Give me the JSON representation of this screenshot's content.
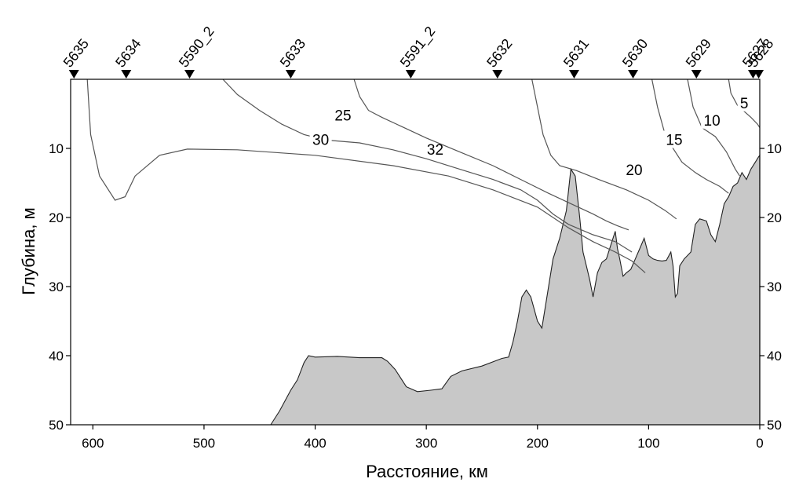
{
  "chart_data": {
    "type": "contour-section",
    "xlabel": "Расстояние, км",
    "ylabel": "Глубина, м",
    "xlim": [
      620,
      0
    ],
    "ylim": [
      0,
      50
    ],
    "x_ticks": [
      600,
      500,
      400,
      300,
      200,
      100,
      0
    ],
    "y_ticks": [
      10,
      20,
      30,
      40,
      50
    ],
    "stations": [
      {
        "name": "5635",
        "km": 617
      },
      {
        "name": "5634",
        "km": 570
      },
      {
        "name": "5590_2",
        "km": 513
      },
      {
        "name": "5633",
        "km": 422
      },
      {
        "name": "5591_2",
        "km": 314
      },
      {
        "name": "5632",
        "km": 236
      },
      {
        "name": "5631",
        "km": 167
      },
      {
        "name": "5630",
        "km": 114
      },
      {
        "name": "5629",
        "km": 57
      },
      {
        "name": "5627",
        "km": 6
      },
      {
        "name": "5628",
        "km": 1
      }
    ],
    "bottom_profile": [
      [
        455,
        50
      ],
      [
        440,
        50
      ],
      [
        432,
        48
      ],
      [
        422,
        45
      ],
      [
        416,
        43.5
      ],
      [
        410,
        41
      ],
      [
        406,
        40
      ],
      [
        400,
        40.2
      ],
      [
        380,
        40.1
      ],
      [
        360,
        40.3
      ],
      [
        340,
        40.3
      ],
      [
        335,
        40.8
      ],
      [
        328,
        42
      ],
      [
        318,
        44.5
      ],
      [
        308,
        45.2
      ],
      [
        296,
        45.0
      ],
      [
        286,
        44.8
      ],
      [
        278,
        43.0
      ],
      [
        268,
        42.2
      ],
      [
        250,
        41.5
      ],
      [
        232,
        40.4
      ],
      [
        226,
        40.2
      ],
      [
        222,
        38
      ],
      [
        218,
        35
      ],
      [
        214,
        31.5
      ],
      [
        210,
        30.5
      ],
      [
        206,
        31.5
      ],
      [
        200,
        35
      ],
      [
        196,
        36
      ],
      [
        192,
        32
      ],
      [
        186,
        26
      ],
      [
        180,
        23
      ],
      [
        174,
        19
      ],
      [
        170,
        13
      ],
      [
        166,
        14
      ],
      [
        162,
        20
      ],
      [
        159,
        25
      ],
      [
        156,
        27
      ],
      [
        153,
        29
      ],
      [
        150,
        31.5
      ],
      [
        146,
        28
      ],
      [
        142,
        26.5
      ],
      [
        138,
        26
      ],
      [
        134,
        24
      ],
      [
        130,
        22
      ],
      [
        128,
        24.5
      ],
      [
        126,
        26
      ],
      [
        123,
        28.5
      ],
      [
        120,
        28
      ],
      [
        116,
        27.5
      ],
      [
        112,
        26
      ],
      [
        108,
        24.5
      ],
      [
        104,
        23
      ],
      [
        100,
        25.5
      ],
      [
        96,
        26
      ],
      [
        92,
        26.2
      ],
      [
        88,
        26.3
      ],
      [
        84,
        26.2
      ],
      [
        80,
        25
      ],
      [
        78,
        27
      ],
      [
        76,
        31.5
      ],
      [
        74,
        31
      ],
      [
        72,
        27
      ],
      [
        68,
        26
      ],
      [
        62,
        25
      ],
      [
        58,
        21
      ],
      [
        54,
        20.2
      ],
      [
        48,
        20.5
      ],
      [
        44,
        22.5
      ],
      [
        40,
        23.5
      ],
      [
        36,
        21
      ],
      [
        32,
        18
      ],
      [
        28,
        17
      ],
      [
        24,
        15.5
      ],
      [
        20,
        15.0
      ],
      [
        16,
        13.5
      ],
      [
        12,
        14.5
      ],
      [
        8,
        13
      ],
      [
        4,
        12
      ],
      [
        1,
        11.2
      ],
      [
        0,
        11
      ]
    ],
    "isohalines": [
      {
        "value": 32,
        "label_at": [
          292,
          10.2
        ],
        "points": [
          [
            605,
            0
          ],
          [
            602,
            8
          ],
          [
            594,
            14
          ],
          [
            580,
            17.5
          ],
          [
            571,
            17.0
          ],
          [
            562,
            14.0
          ],
          [
            540,
            11.0
          ],
          [
            515,
            10.1
          ],
          [
            470,
            10.2
          ],
          [
            400,
            11
          ],
          [
            330,
            12.5
          ],
          [
            280,
            14.0
          ],
          [
            240,
            16.0
          ],
          [
            200,
            18.5
          ],
          [
            186,
            20
          ],
          [
            172,
            21.5
          ],
          [
            150,
            23.5
          ],
          [
            130,
            25.0
          ],
          [
            115,
            26.3
          ],
          [
            103,
            28
          ]
        ]
      },
      {
        "value": 30,
        "label_at": [
          395,
          8.8
        ],
        "points": [
          [
            483,
            0
          ],
          [
            470,
            2.2
          ],
          [
            450,
            4.5
          ],
          [
            430,
            6.5
          ],
          [
            410,
            8.0
          ],
          [
            390,
            8.8
          ],
          [
            360,
            9.2
          ],
          [
            330,
            10.2
          ],
          [
            300,
            11.5
          ],
          [
            270,
            13.0
          ],
          [
            240,
            14.5
          ],
          [
            215,
            16.0
          ],
          [
            200,
            17.5
          ],
          [
            186,
            19.5
          ],
          [
            172,
            21.0
          ],
          [
            150,
            22.5
          ],
          [
            130,
            23.5
          ],
          [
            115,
            25.0
          ]
        ]
      },
      {
        "value": 25,
        "label_at": [
          375,
          5.3
        ],
        "points": [
          [
            365,
            0
          ],
          [
            360,
            2.5
          ],
          [
            352,
            4.5
          ],
          [
            340,
            5.5
          ],
          [
            320,
            7.0
          ],
          [
            300,
            8.5
          ],
          [
            270,
            10.5
          ],
          [
            240,
            12.5
          ],
          [
            215,
            14.5
          ],
          [
            190,
            16.5
          ],
          [
            170,
            18.0
          ],
          [
            150,
            19.5
          ],
          [
            138,
            20.5
          ],
          [
            128,
            21.2
          ],
          [
            118,
            21.8
          ]
        ]
      },
      {
        "value": 20,
        "label_at": [
          113,
          13.2
        ],
        "points": [
          [
            205,
            0
          ],
          [
            200,
            4
          ],
          [
            195,
            8
          ],
          [
            188,
            11
          ],
          [
            180,
            12.5
          ],
          [
            165,
            13.2
          ],
          [
            145,
            14.5
          ],
          [
            120,
            16.0
          ],
          [
            100,
            17.5
          ],
          [
            85,
            19
          ],
          [
            75,
            20.2
          ]
        ]
      },
      {
        "value": 15,
        "label_at": [
          77,
          8.8
        ],
        "points": [
          [
            97,
            0
          ],
          [
            92,
            4
          ],
          [
            86,
            7.5
          ],
          [
            78,
            10
          ],
          [
            70,
            12
          ],
          [
            58,
            13.5
          ],
          [
            48,
            14.5
          ],
          [
            36,
            15.5
          ],
          [
            28,
            16.5
          ]
        ]
      },
      {
        "value": 10,
        "label_at": [
          43,
          6.0
        ],
        "points": [
          [
            65,
            0
          ],
          [
            60,
            4
          ],
          [
            52,
            7
          ],
          [
            40,
            8.3
          ],
          [
            30,
            10.5
          ],
          [
            22,
            13.0
          ],
          [
            18,
            14.0
          ]
        ]
      },
      {
        "value": 5,
        "label_at": [
          14,
          3.5
        ],
        "points": [
          [
            28,
            0
          ],
          [
            26,
            2
          ],
          [
            20,
            3.8
          ],
          [
            8,
            5.5
          ],
          [
            2,
            6.5
          ],
          [
            0,
            7
          ]
        ]
      }
    ]
  }
}
